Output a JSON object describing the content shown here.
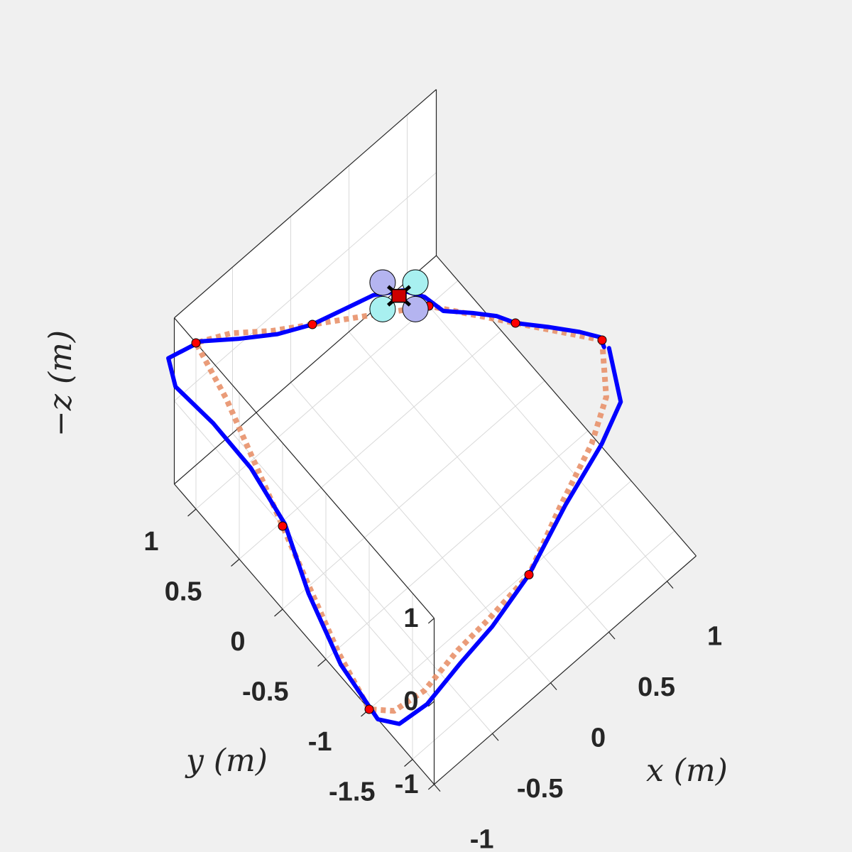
{
  "chart_data": {
    "type": "line3d",
    "view": "isometric top-down",
    "grid": true,
    "xlabel": "x (m)",
    "ylabel": "y (m)",
    "zlabel": "−z (m)",
    "xlim": [
      -1,
      1.25
    ],
    "ylim": [
      -1.75,
      1.25
    ],
    "zlim": [
      -1,
      1
    ],
    "xticks": [
      "-1",
      "-0.5",
      "0",
      "0.5",
      "1"
    ],
    "yticks": [
      "1",
      "0.5",
      "0",
      "-0.5",
      "-1",
      "-1.5"
    ],
    "zticks": [
      "1",
      "0",
      "-1"
    ],
    "colors": {
      "actual": "#0000ff",
      "reference": "#e8916a",
      "waypoint": "#ff0000",
      "drone_body": "#cc0000",
      "rotor_a": "#b4b4f0",
      "rotor_b": "#a8f0f0"
    },
    "waypoints": [
      {
        "x": 1.0,
        "y": -1.0,
        "z": 1.0
      },
      {
        "x": 0.0,
        "y": -1.5,
        "z": 0.0
      },
      {
        "x": -1.0,
        "y": -1.0,
        "z": -1.0
      },
      {
        "x": -1.0,
        "y": 0.0,
        "z": 0.0
      },
      {
        "x": -1.0,
        "y": 1.0,
        "z": 1.0
      },
      {
        "x": 0.0,
        "y": 1.0,
        "z": 0.0
      },
      {
        "x": 1.0,
        "y": 1.0,
        "z": -1.0
      },
      {
        "x": 1.0,
        "y": 0.0,
        "z": 0.0
      }
    ],
    "series": [
      {
        "style": "solid",
        "points": [
          [
            1.0,
            -1.08,
            1.0
          ],
          [
            0.9,
            -1.35,
            0.8
          ],
          [
            0.7,
            -1.4,
            0.6
          ],
          [
            0.35,
            -1.45,
            0.35
          ],
          [
            0.0,
            -1.5,
            0.0
          ],
          [
            -0.3,
            -1.48,
            -0.28
          ],
          [
            -0.55,
            -1.45,
            -0.45
          ],
          [
            -0.8,
            -1.4,
            -0.7
          ],
          [
            -0.95,
            -1.28,
            -0.9
          ],
          [
            -1.0,
            -1.1,
            -1.0
          ],
          [
            -1.02,
            -0.7,
            -0.8
          ],
          [
            -1.0,
            -0.3,
            -0.45
          ],
          [
            -0.98,
            0.0,
            0.0
          ],
          [
            -1.05,
            0.3,
            0.4
          ],
          [
            -1.15,
            0.6,
            0.7
          ],
          [
            -1.25,
            0.9,
            0.9
          ],
          [
            -1.2,
            1.05,
            1.0
          ],
          [
            -0.9,
            1.08,
            0.8
          ],
          [
            -0.6,
            1.05,
            0.5
          ],
          [
            -0.3,
            1.0,
            0.25
          ],
          [
            0.0,
            1.0,
            0.0
          ],
          [
            0.3,
            1.05,
            -0.25
          ],
          [
            0.6,
            1.1,
            -0.5
          ],
          [
            0.85,
            1.1,
            -0.75
          ],
          [
            1.0,
            1.05,
            -0.95
          ],
          [
            1.05,
            0.9,
            -1.0
          ],
          [
            1.08,
            0.6,
            -0.7
          ],
          [
            1.06,
            0.3,
            -0.35
          ],
          [
            1.0,
            0.0,
            0.0
          ],
          [
            1.02,
            -0.35,
            0.35
          ],
          [
            1.03,
            -0.7,
            0.7
          ],
          [
            1.02,
            -0.95,
            0.95
          ],
          [
            0.98,
            -1.05,
            1.0
          ]
        ]
      },
      {
        "style": "dashed",
        "points": [
          [
            1.0,
            -1.0,
            1.0
          ],
          [
            0.85,
            -1.25,
            0.8
          ],
          [
            0.65,
            -1.35,
            0.6
          ],
          [
            0.33,
            -1.42,
            0.33
          ],
          [
            0.0,
            -1.5,
            0.0
          ],
          [
            -0.28,
            -1.42,
            -0.28
          ],
          [
            -0.5,
            -1.35,
            -0.48
          ],
          [
            -0.75,
            -1.3,
            -0.72
          ],
          [
            -0.92,
            -1.18,
            -0.9
          ],
          [
            -1.0,
            -1.0,
            -1.0
          ],
          [
            -1.0,
            -0.65,
            -0.75
          ],
          [
            -1.0,
            -0.3,
            -0.35
          ],
          [
            -1.0,
            0.0,
            0.0
          ],
          [
            -1.0,
            0.3,
            0.35
          ],
          [
            -1.0,
            0.65,
            0.75
          ],
          [
            -1.0,
            1.0,
            1.0
          ],
          [
            -0.7,
            1.0,
            0.75
          ],
          [
            -0.35,
            1.0,
            0.35
          ],
          [
            0.0,
            1.0,
            0.0
          ],
          [
            0.3,
            1.0,
            -0.3
          ],
          [
            0.6,
            1.0,
            -0.6
          ],
          [
            0.85,
            1.0,
            -0.85
          ],
          [
            1.0,
            1.0,
            -1.0
          ],
          [
            1.0,
            0.7,
            -0.7
          ],
          [
            1.0,
            0.35,
            -0.35
          ],
          [
            1.0,
            0.0,
            0.0
          ],
          [
            1.0,
            -0.35,
            0.35
          ],
          [
            1.0,
            -0.7,
            0.7
          ],
          [
            1.0,
            -1.0,
            1.0
          ]
        ]
      }
    ]
  }
}
